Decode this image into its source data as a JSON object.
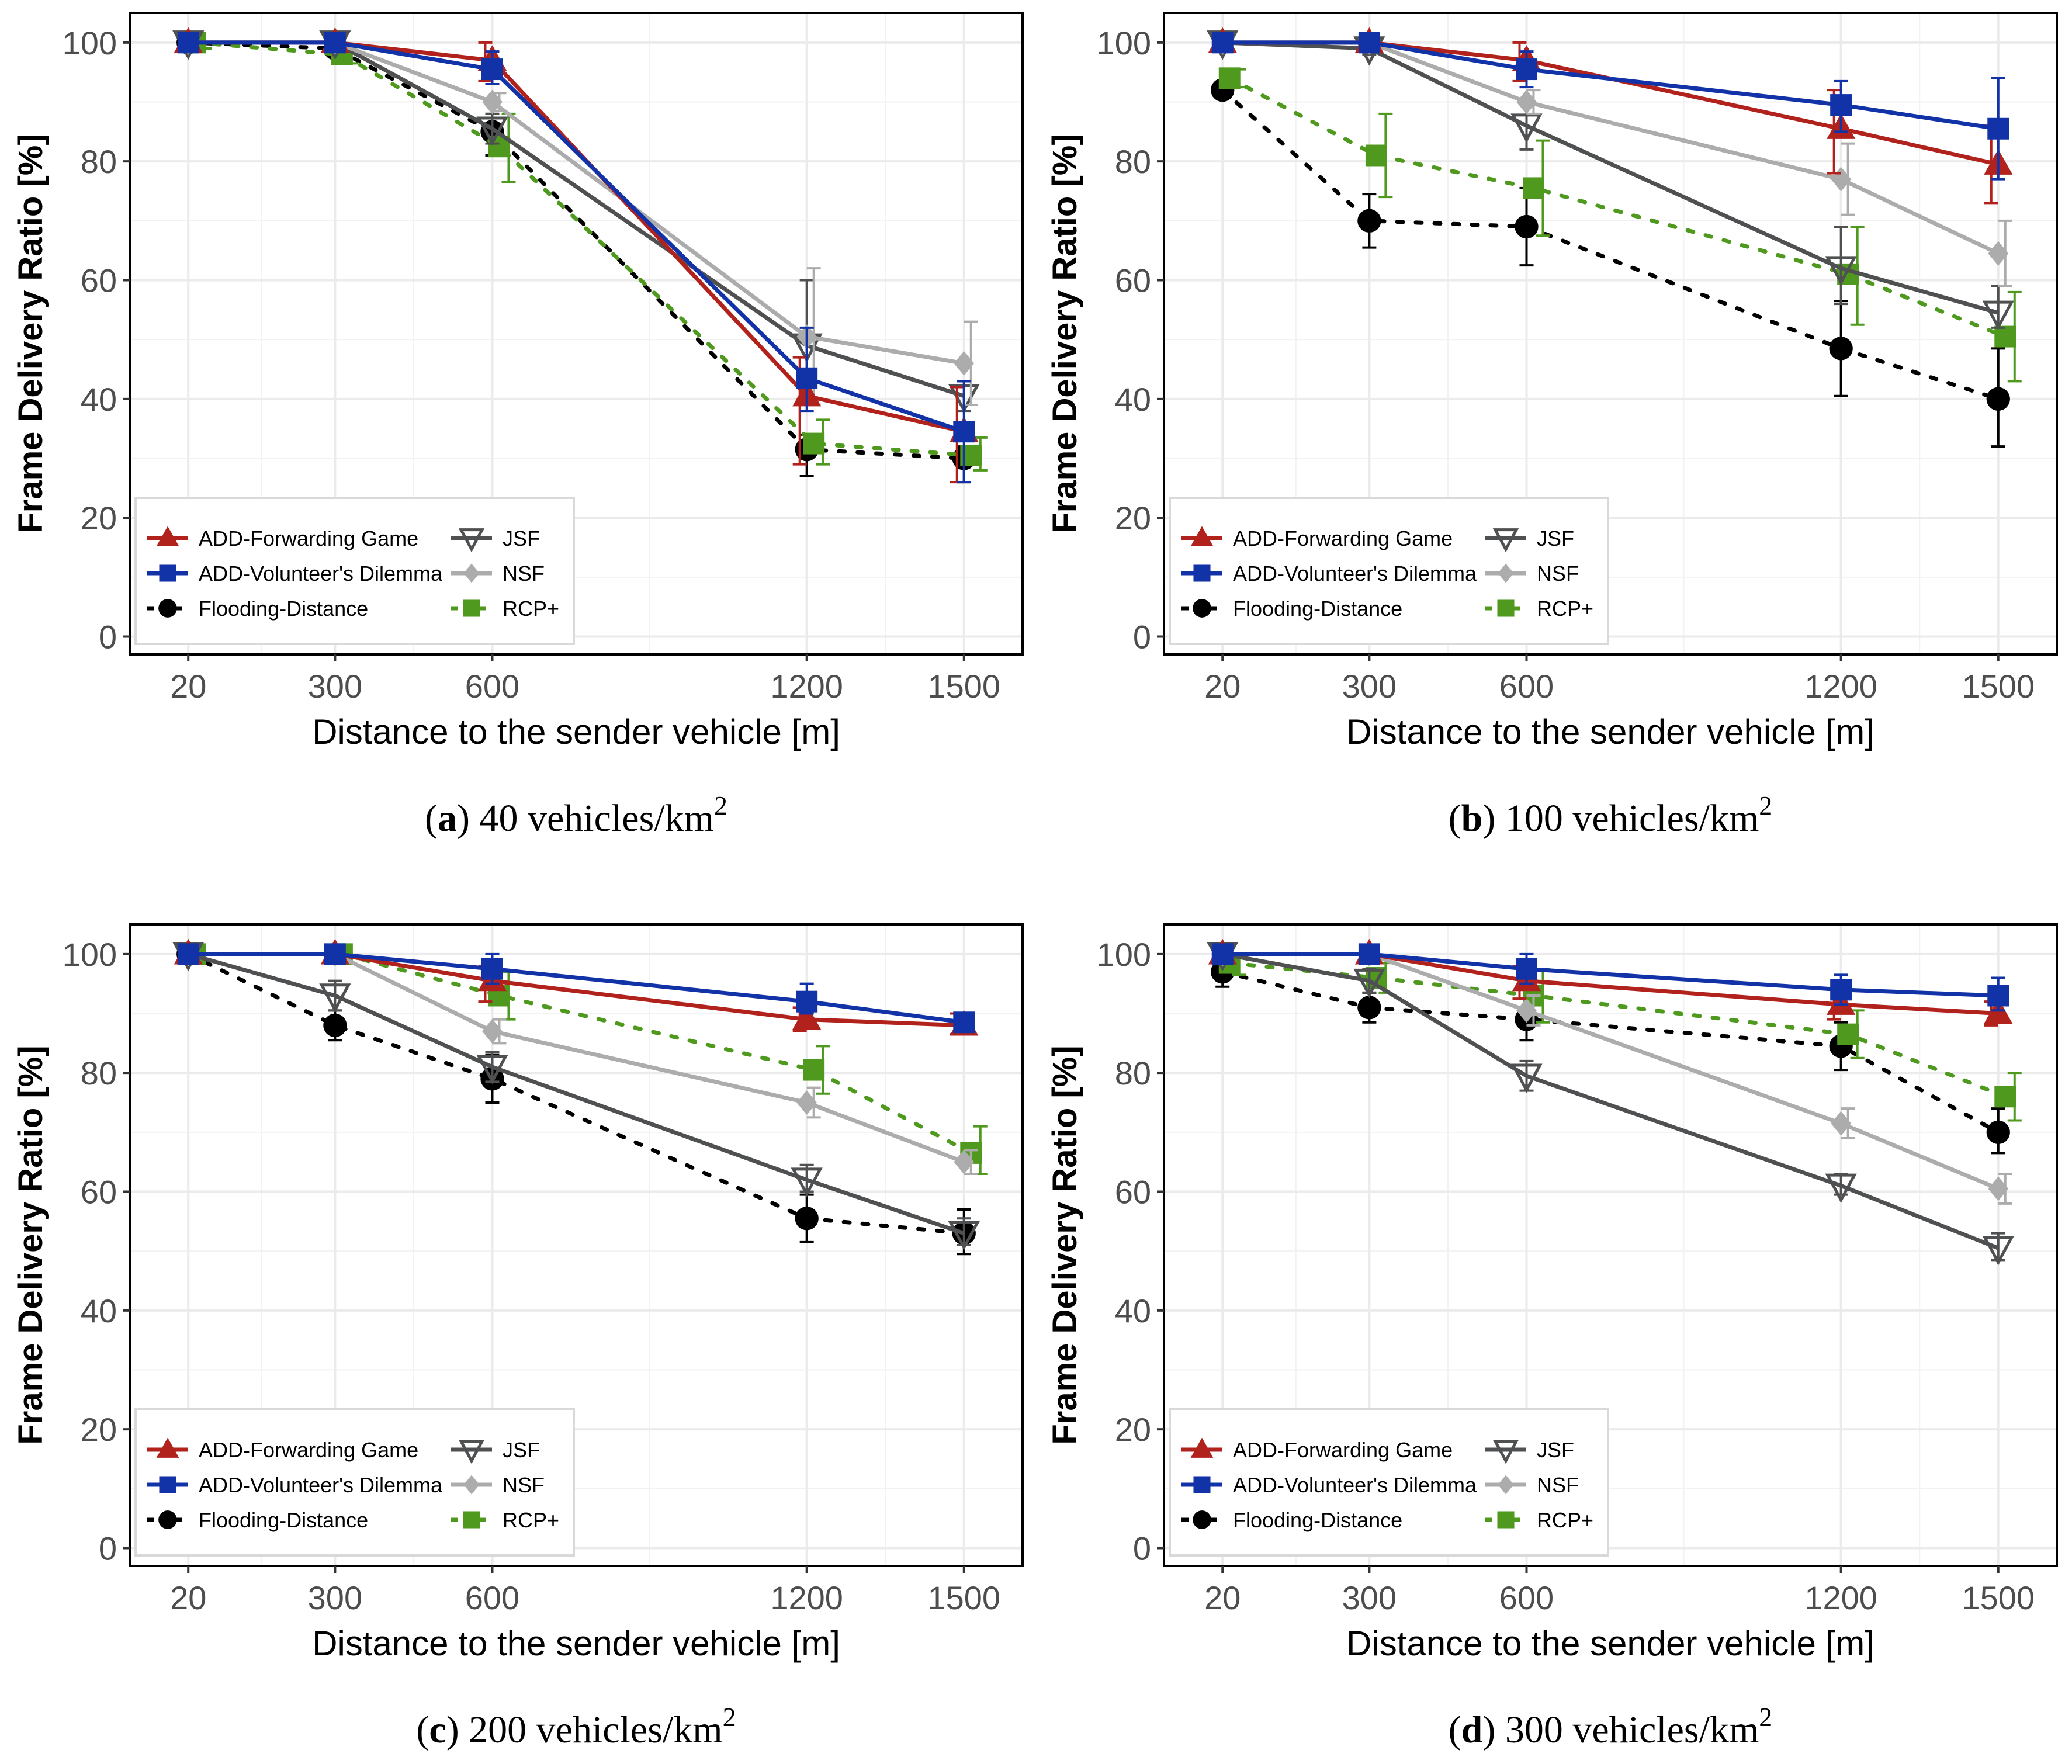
{
  "colors": {
    "ADD-Forwarding Game": "#b2221d",
    "ADD-Volunteer's Dilemma": "#1232a8",
    "Flooding-Distance": "#000000",
    "JSF": "#4f5052",
    "NSF": "#acacac",
    "RCP+": "#4f9a1e"
  },
  "chart_data": [
    {
      "type": "line",
      "panel": "a",
      "caption": {
        "label": "a",
        "text": "40 vehicles/km",
        "superscript": "2"
      },
      "xlabel": "Distance to the sender vehicle [m]",
      "ylabel": "Frame Delivery Ratio [%]",
      "x": [
        20,
        300,
        600,
        1200,
        1500
      ],
      "ylim": [
        -3,
        105
      ],
      "yticks": [
        0,
        20,
        40,
        60,
        80,
        100
      ],
      "grid": true,
      "legend_position": "bottom-left",
      "series": [
        {
          "name": "ADD-Forwarding Game",
          "values": [
            100,
            100,
            97,
            40.5,
            34.5
          ],
          "err_low": [
            100,
            100,
            93.5,
            29,
            26
          ],
          "err_high": [
            100,
            100,
            100,
            47,
            42
          ]
        },
        {
          "name": "ADD-Volunteer's Dilemma",
          "values": [
            100,
            100,
            95.5,
            43.5,
            34.5
          ],
          "err_low": [
            100,
            100,
            93,
            38,
            26
          ],
          "err_high": [
            100,
            100,
            98.5,
            52,
            43
          ]
        },
        {
          "name": "Flooding-Distance",
          "values": [
            100,
            99,
            85,
            31.5,
            30
          ],
          "err_low": [
            100,
            98,
            81,
            27,
            26
          ],
          "err_high": [
            100,
            100,
            88,
            34,
            32
          ]
        },
        {
          "name": "JSF",
          "values": [
            100,
            100,
            85.5,
            49,
            40.5
          ],
          "err_low": [
            100,
            100,
            83,
            39,
            38
          ],
          "err_high": [
            100,
            100,
            88,
            60,
            43
          ]
        },
        {
          "name": "NSF",
          "values": [
            100,
            100,
            90,
            50.5,
            46
          ],
          "err_low": [
            100,
            100,
            88.5,
            39,
            39
          ],
          "err_high": [
            100,
            100,
            91.5,
            62,
            53
          ]
        },
        {
          "name": "RCP+",
          "values": [
            100,
            98,
            82.5,
            32.5,
            30.5
          ],
          "err_low": [
            99,
            96.5,
            76.5,
            29,
            28
          ],
          "err_high": [
            100,
            99.5,
            88,
            36.5,
            33.5
          ]
        }
      ]
    },
    {
      "type": "line",
      "panel": "b",
      "caption": {
        "label": "b",
        "text": "100 vehicles/km",
        "superscript": "2"
      },
      "xlabel": "Distance to the sender vehicle [m]",
      "ylabel": "Frame Delivery Ratio [%]",
      "x": [
        20,
        300,
        600,
        1200,
        1500
      ],
      "ylim": [
        -3,
        105
      ],
      "yticks": [
        0,
        20,
        40,
        60,
        80,
        100
      ],
      "grid": true,
      "legend_position": "bottom-left",
      "series": [
        {
          "name": "ADD-Forwarding Game",
          "values": [
            100,
            100,
            97,
            85.5,
            79.5
          ],
          "err_low": [
            100,
            100,
            93.5,
            78,
            73
          ],
          "err_high": [
            100,
            100,
            100,
            92,
            86
          ]
        },
        {
          "name": "ADD-Volunteer's Dilemma",
          "values": [
            100,
            100,
            95.5,
            89.5,
            85.5
          ],
          "err_low": [
            100,
            100,
            92.5,
            85,
            77
          ],
          "err_high": [
            100,
            100,
            98.5,
            93.5,
            94
          ]
        },
        {
          "name": "Flooding-Distance",
          "values": [
            92,
            70,
            69,
            48.5,
            40
          ],
          "err_low": [
            91,
            65.5,
            62.5,
            40.5,
            32
          ],
          "err_high": [
            93,
            74.5,
            75.5,
            56.5,
            48.5
          ]
        },
        {
          "name": "JSF",
          "values": [
            100,
            99,
            86,
            62,
            54.5
          ],
          "err_low": [
            100,
            98,
            82,
            56,
            52
          ],
          "err_high": [
            100,
            100,
            90,
            69,
            59
          ]
        },
        {
          "name": "NSF",
          "values": [
            100,
            100,
            90,
            77,
            64.5
          ],
          "err_low": [
            100,
            100,
            88,
            71,
            59
          ],
          "err_high": [
            100,
            100,
            92,
            83,
            70
          ]
        },
        {
          "name": "RCP+",
          "values": [
            94,
            81,
            75.5,
            61,
            50.5
          ],
          "err_low": [
            92.5,
            74,
            67.5,
            52.5,
            43
          ],
          "err_high": [
            95.5,
            88,
            83.5,
            69,
            58
          ]
        }
      ]
    },
    {
      "type": "line",
      "panel": "c",
      "caption": {
        "label": "c",
        "text": "200 vehicles/km",
        "superscript": "2"
      },
      "xlabel": "Distance to the sender vehicle [m]",
      "ylabel": "Frame Delivery Ratio [%]",
      "x": [
        20,
        300,
        600,
        1200,
        1500
      ],
      "ylim": [
        -3,
        105
      ],
      "yticks": [
        0,
        20,
        40,
        60,
        80,
        100
      ],
      "grid": true,
      "legend_position": "bottom-left",
      "series": [
        {
          "name": "ADD-Forwarding Game",
          "values": [
            100,
            100,
            95.5,
            89,
            88
          ],
          "err_low": [
            100,
            100,
            92,
            87,
            86.5
          ],
          "err_high": [
            100,
            100,
            98,
            91,
            90
          ]
        },
        {
          "name": "ADD-Volunteer's Dilemma",
          "values": [
            100,
            100,
            97.5,
            92,
            88.5
          ],
          "err_low": [
            100,
            100,
            95,
            90,
            87
          ],
          "err_high": [
            100,
            100,
            100,
            95,
            90
          ]
        },
        {
          "name": "Flooding-Distance",
          "values": [
            100,
            88,
            79,
            55.5,
            53
          ],
          "err_low": [
            99,
            85.5,
            75,
            51.5,
            49.5
          ],
          "err_high": [
            100,
            90.5,
            83,
            59.5,
            57
          ]
        },
        {
          "name": "JSF",
          "values": [
            100,
            93,
            81,
            62,
            53
          ],
          "err_low": [
            100,
            90.5,
            78.5,
            60,
            51
          ],
          "err_high": [
            100,
            95.5,
            83.5,
            64.5,
            55.5
          ]
        },
        {
          "name": "NSF",
          "values": [
            100,
            100,
            87,
            75,
            65
          ],
          "err_low": [
            100,
            100,
            85,
            72.5,
            63
          ],
          "err_high": [
            100,
            100,
            89,
            77.5,
            67
          ]
        },
        {
          "name": "RCP+",
          "values": [
            100,
            100,
            93,
            80.5,
            66.5
          ],
          "err_low": [
            100,
            100,
            89,
            76.5,
            63
          ],
          "err_high": [
            100,
            100,
            97,
            84.5,
            71
          ]
        }
      ]
    },
    {
      "type": "line",
      "panel": "d",
      "caption": {
        "label": "d",
        "text": "300 vehicles/km",
        "superscript": "2"
      },
      "xlabel": "Distance to the sender vehicle [m]",
      "ylabel": "Frame Delivery Ratio [%]",
      "x": [
        20,
        300,
        600,
        1200,
        1500
      ],
      "ylim": [
        -3,
        105
      ],
      "yticks": [
        0,
        20,
        40,
        60,
        80,
        100
      ],
      "grid": true,
      "legend_position": "bottom-left",
      "series": [
        {
          "name": "ADD-Forwarding Game",
          "values": [
            100,
            100,
            95.5,
            91.5,
            90
          ],
          "err_low": [
            100,
            100,
            92.5,
            89,
            88
          ],
          "err_high": [
            100,
            100,
            98,
            94,
            92
          ]
        },
        {
          "name": "ADD-Volunteer's Dilemma",
          "values": [
            100,
            100,
            97.5,
            94,
            93
          ],
          "err_low": [
            100,
            100,
            95,
            91.5,
            90.5
          ],
          "err_high": [
            100,
            100,
            100,
            96.5,
            96
          ]
        },
        {
          "name": "Flooding-Distance",
          "values": [
            97,
            91,
            89,
            84.5,
            70
          ],
          "err_low": [
            94.5,
            88.5,
            85.5,
            80.5,
            66.5
          ],
          "err_high": [
            99,
            93.5,
            92.5,
            88.5,
            74
          ]
        },
        {
          "name": "JSF",
          "values": [
            100,
            95.5,
            79.5,
            61,
            50.5
          ],
          "err_low": [
            100,
            93.5,
            77,
            59.5,
            48.5
          ],
          "err_high": [
            100,
            97.5,
            82,
            63,
            53
          ]
        },
        {
          "name": "NSF",
          "values": [
            100,
            100,
            90.5,
            71.5,
            60.5
          ],
          "err_low": [
            100,
            100,
            88,
            69,
            58
          ],
          "err_high": [
            100,
            100,
            93,
            74,
            63
          ]
        },
        {
          "name": "RCP+",
          "values": [
            98.5,
            96,
            93,
            86.5,
            76
          ],
          "err_low": [
            96.5,
            93.5,
            88.5,
            82.5,
            72
          ],
          "err_high": [
            100,
            98.5,
            97.5,
            90.5,
            80
          ]
        }
      ]
    }
  ]
}
